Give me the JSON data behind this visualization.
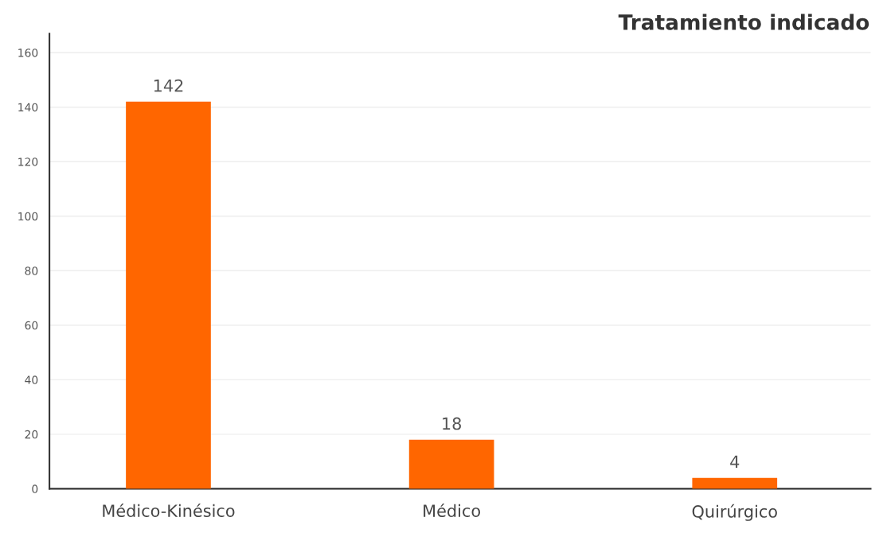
{
  "chart_data": {
    "type": "bar",
    "title": "Tratamiento indicado",
    "categories": [
      "Médico-Kinésico",
      "Médico",
      "Quirúrgico"
    ],
    "values": [
      142,
      18,
      4
    ],
    "color": "#ff6600",
    "ylim": [
      0,
      167
    ],
    "yticks": [
      0,
      20,
      40,
      60,
      80,
      100,
      120,
      140,
      160
    ],
    "grid": "y",
    "data_labels": true
  }
}
